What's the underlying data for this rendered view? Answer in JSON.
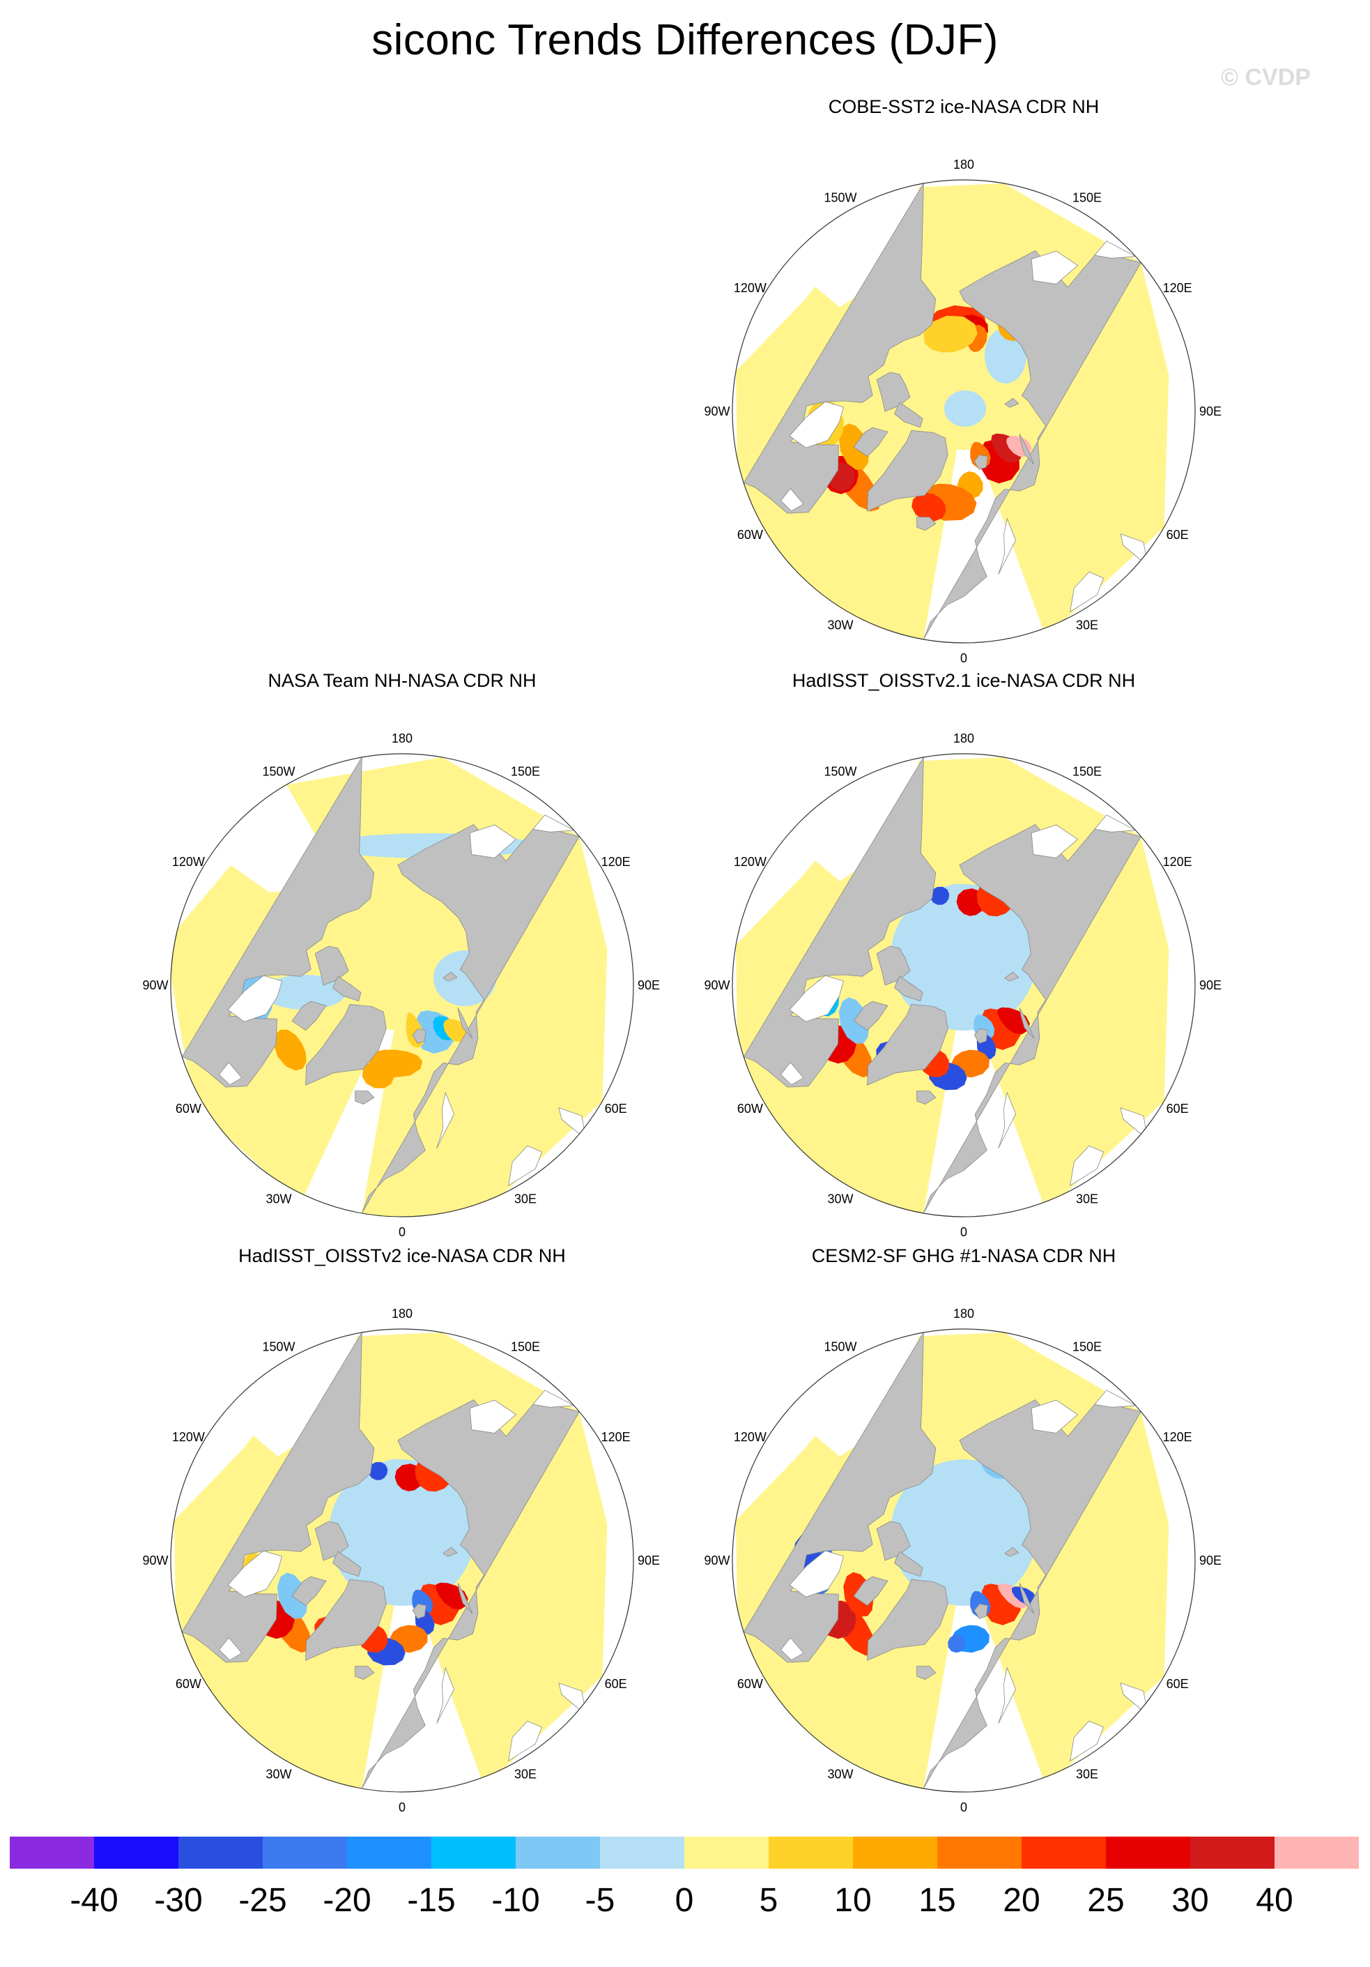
{
  "title": "siconc Trends Differences (DJF)",
  "watermark": "© CVDP",
  "panels": [
    {
      "id": "cobe",
      "title": "COBE-SST2 ice-NASA CDR NH",
      "variant": "cobe"
    },
    {
      "id": "nasateam",
      "title": "NASA Team NH-NASA CDR NH",
      "variant": "nasateam"
    },
    {
      "id": "hadoi21",
      "title": "HadISST_OISSTv2.1 ice-NASA CDR NH",
      "variant": "had21"
    },
    {
      "id": "hadoi2",
      "title": "HadISST_OISSTv2 ice-NASA CDR NH",
      "variant": "had2"
    },
    {
      "id": "cesm",
      "title": "CESM2-SF GHG #1-NASA CDR NH",
      "variant": "cesm"
    }
  ],
  "longitude_labels": [
    "180",
    "150E",
    "120E",
    "90E",
    "60E",
    "30E",
    "0",
    "30W",
    "60W",
    "90W",
    "120W",
    "150W"
  ],
  "colorbar": {
    "colors": [
      "#8a2be2",
      "#1a0dff",
      "#2a4fe0",
      "#3a7aee",
      "#1e90ff",
      "#00bfff",
      "#7ec8f5",
      "#b4dff5",
      "#fff58c",
      "#ffd22a",
      "#ffaa00",
      "#ff7800",
      "#ff3200",
      "#e60000",
      "#d11b1b",
      "#ffb4b4"
    ],
    "labels": [
      "-40",
      "-30",
      "-25",
      "-20",
      "-15",
      "-10",
      "-5",
      "0",
      "5",
      "10",
      "15",
      "20",
      "25",
      "30",
      "40"
    ]
  },
  "map_colors": {
    "land": "#c0c0c0",
    "ocean_fill": "#fff58c",
    "light_blue": "#b4dff5",
    "coast": "#ffffff"
  }
}
